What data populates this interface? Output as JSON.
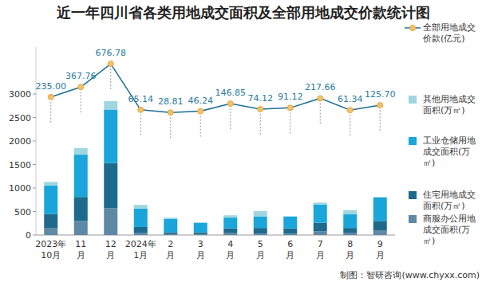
{
  "chart_data": {
    "type": "bar",
    "title": "近一年四川省各类用地成交面积及全部用地成交价款统计图",
    "source": "制图：智研咨询(www.chyxx.com)",
    "stacked": true,
    "grid": false,
    "legend": "right",
    "categories": [
      "2023年10月",
      "11月",
      "12月",
      "2024年1月",
      "2月",
      "3月",
      "4月",
      "5月",
      "6月",
      "7月",
      "8月",
      "9月"
    ],
    "ylim": [
      0,
      4000
    ],
    "yticks": [
      0,
      500,
      1000,
      1500,
      2000,
      2500,
      3000
    ],
    "y2lim": [
      -1600,
      900
    ],
    "series": [
      {
        "name": "全部用地成交价款(亿元)",
        "type": "line",
        "axis": "y2",
        "color": "#1a6f96",
        "marker": "circle",
        "data_labels": true,
        "values": [
          235.0,
          367.76,
          676.78,
          65.14,
          28.81,
          46.24,
          146.85,
          74.12,
          91.12,
          217.66,
          61.34,
          125.7
        ],
        "value_labels": [
          "235.00",
          "367.76",
          "676.78",
          "65.14",
          "28.81",
          "46.24",
          "146.85",
          "74.12",
          "91.12",
          "217.66",
          "61.34",
          "125.70"
        ]
      },
      {
        "name": "其他用地成交面积(万㎡)",
        "type": "bar",
        "color": "#9fd6e0",
        "values": [
          80,
          140,
          180,
          80,
          30,
          10,
          50,
          120,
          10,
          40,
          90,
          10
        ]
      },
      {
        "name": "工业仓储用地成交面积(万㎡)",
        "type": "bar",
        "color": "#1aa6db",
        "values": [
          600,
          900,
          1140,
          390,
          280,
          200,
          230,
          240,
          250,
          390,
          290,
          500
        ]
      },
      {
        "name": "住宅用地成交面积(万㎡)",
        "type": "bar",
        "color": "#1d6a8c",
        "values": [
          300,
          510,
          960,
          130,
          40,
          40,
          100,
          120,
          110,
          180,
          100,
          200
        ]
      },
      {
        "name": "商服办公用地成交面积(万㎡)",
        "type": "bar",
        "color": "#5e88a6",
        "values": [
          150,
          300,
          570,
          40,
          20,
          20,
          40,
          30,
          30,
          80,
          50,
          100
        ]
      }
    ]
  }
}
